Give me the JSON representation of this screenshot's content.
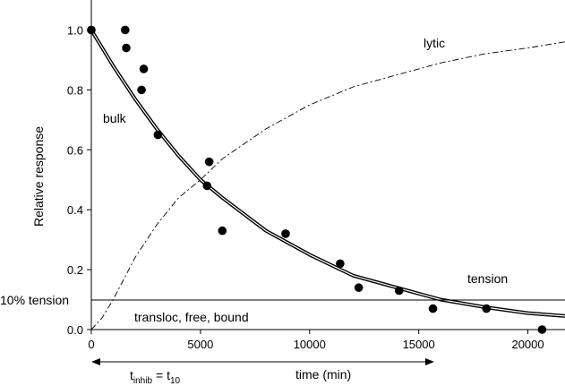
{
  "chart_data": {
    "type": "scatter",
    "title": "",
    "xlabel": "time (min)",
    "ylabel": "Relative response",
    "xlim": [
      0,
      21700
    ],
    "ylim": [
      0,
      1.1
    ],
    "x_ticks": [
      0,
      5000,
      10000,
      15000,
      20000
    ],
    "y_ticks": [
      0.0,
      0.2,
      0.4,
      0.6,
      0.8,
      1.0
    ],
    "x_tick_labels": [
      "0",
      "5000",
      "10000",
      "15000",
      "20000"
    ],
    "y_tick_labels": [
      "0.0",
      "0.2",
      "0.4",
      "0.6",
      "0.8",
      "1.0"
    ],
    "grid": false,
    "series": [
      {
        "kind": "points",
        "x": [
          0,
          1550,
          1600,
          2300,
          2400,
          3050,
          5300,
          5400,
          6000,
          8900,
          11400,
          12250,
          14100,
          15650,
          18100,
          20650
        ],
        "y": [
          1.0,
          1.0,
          0.94,
          0.8,
          0.87,
          0.65,
          0.48,
          0.56,
          0.33,
          0.32,
          0.22,
          0.14,
          0.13,
          0.07,
          0.07,
          0.0
        ]
      },
      {
        "kind": "curve",
        "x": [
          0,
          1000,
          2000,
          3000,
          4000,
          5000,
          6000,
          8000,
          10000,
          12000,
          14000,
          16000,
          18000,
          20000,
          21700
        ],
        "y": [
          1.0,
          0.88,
          0.77,
          0.67,
          0.58,
          0.5,
          0.44,
          0.33,
          0.25,
          0.18,
          0.14,
          0.1,
          0.075,
          0.055,
          0.045
        ]
      },
      {
        "kind": "dash-dot",
        "x": [
          0,
          500,
          1000,
          2000,
          3000,
          4000,
          5000,
          6000,
          8000,
          10000,
          12000,
          14000,
          16000,
          18000,
          20000,
          21700
        ],
        "y": [
          0.0,
          0.04,
          0.1,
          0.24,
          0.35,
          0.44,
          0.5,
          0.57,
          0.67,
          0.75,
          0.81,
          0.85,
          0.89,
          0.92,
          0.94,
          0.96
        ]
      },
      {
        "kind": "dashed",
        "x": [
          0,
          16500
        ],
        "y": [
          0.0,
          0.0
        ]
      }
    ],
    "reference_line": {
      "label": "10% tension",
      "y": 0.1
    },
    "annotations": {
      "bulk": "bulk",
      "lytic": "lytic",
      "tension": "tension",
      "transloc": "transloc, free, bound",
      "t_inhib_main": "t",
      "t_inhib_sub": "inhib",
      "t10_main": "= t",
      "t10_sub": "10"
    },
    "arrow_range_x": [
      0,
      15700
    ]
  }
}
